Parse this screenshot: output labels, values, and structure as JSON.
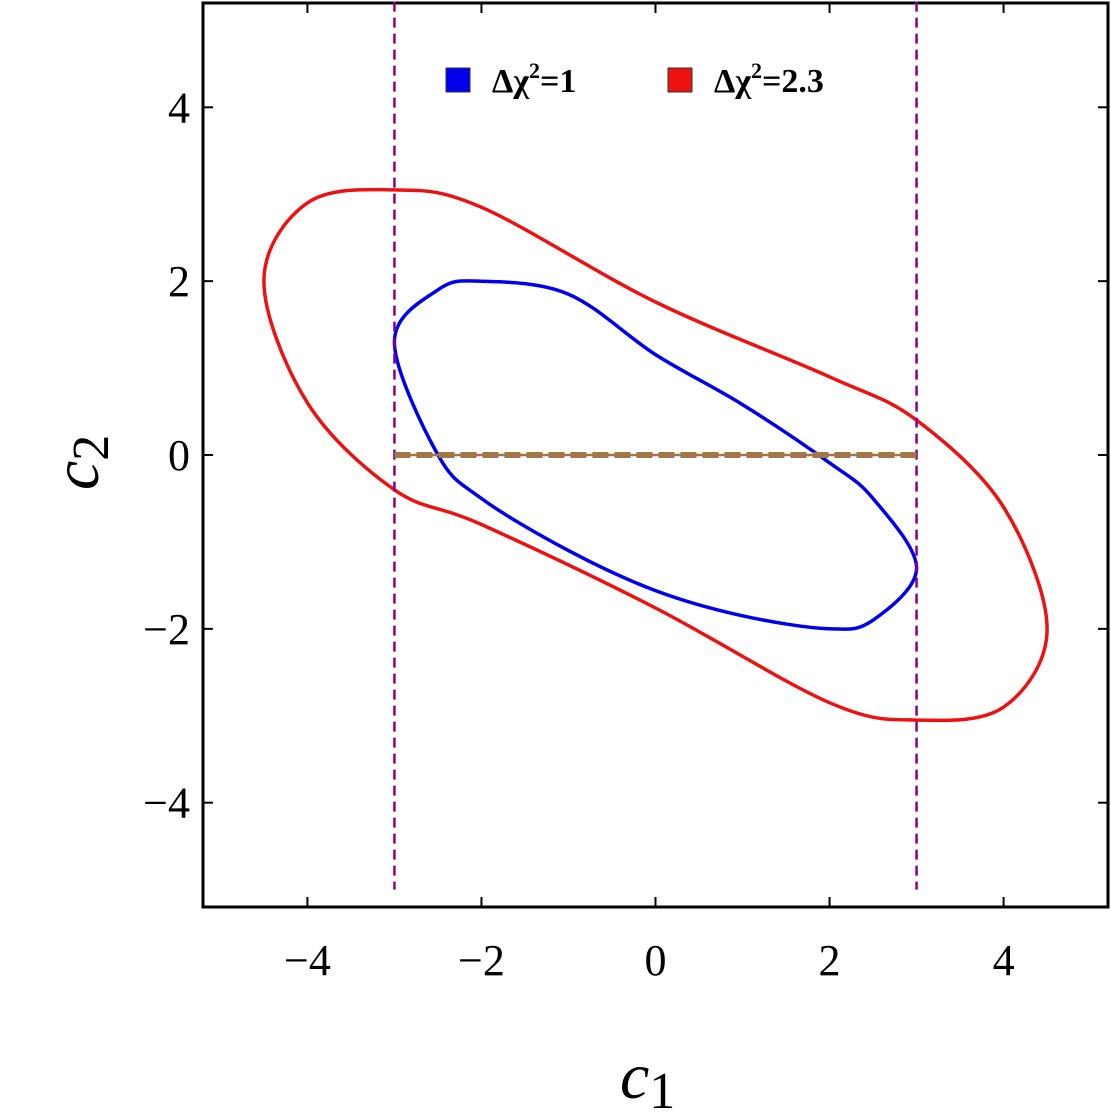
{
  "chart_data": {
    "type": "line",
    "xlabel": "c",
    "xlabel_sub": "1",
    "ylabel": "c",
    "ylabel_sub": "2",
    "xlim": [
      -5.2,
      5.2
    ],
    "ylim": [
      -5.2,
      5.2
    ],
    "xticks": [
      -4,
      -2,
      0,
      2,
      4
    ],
    "yticks": [
      -4,
      -2,
      0,
      2,
      4
    ],
    "xtick_labels": [
      "−4",
      "−2",
      "0",
      "2",
      "4"
    ],
    "ytick_labels": [
      "−4",
      "−2",
      "0",
      "2",
      "4"
    ],
    "grid": false,
    "legend_placement": "top-center",
    "series": [
      {
        "name": "Δχ²=1",
        "legend_prefix": "Δχ",
        "legend_sup": "2",
        "legend_suffix": "=1",
        "color": "#0000ee",
        "kind": "ellipse",
        "points": [
          [
            0,
            1.155
          ],
          [
            1,
            0.58
          ],
          [
            2,
            -0.09
          ],
          [
            2.5,
            -0.5
          ],
          [
            3,
            -1.3
          ],
          [
            2.5,
            -1.9
          ],
          [
            2,
            -2.0
          ],
          [
            1,
            -1.85
          ],
          [
            0,
            -1.56
          ],
          [
            -1,
            -1.1
          ],
          [
            -2,
            -0.5
          ],
          [
            -2.5,
            0
          ],
          [
            -3,
            1.3
          ],
          [
            -2.5,
            1.9
          ],
          [
            -2,
            2.0
          ],
          [
            -1,
            1.85
          ],
          [
            0,
            1.155
          ]
        ]
      },
      {
        "name": "Δχ²=2.3",
        "legend_prefix": "Δχ",
        "legend_sup": "2",
        "legend_suffix": "=2.3",
        "color": "#ee1111",
        "kind": "ellipse",
        "points": [
          [
            0,
            1.76
          ],
          [
            2,
            0.9
          ],
          [
            3,
            0.4
          ],
          [
            4,
            -0.6
          ],
          [
            4.5,
            -2.0
          ],
          [
            4,
            -2.9
          ],
          [
            3,
            -3.05
          ],
          [
            2,
            -2.85
          ],
          [
            0,
            -1.76
          ],
          [
            -2,
            -0.8
          ],
          [
            -3,
            -0.4
          ],
          [
            -4,
            0.6
          ],
          [
            -4.5,
            2.0
          ],
          [
            -4,
            2.9
          ],
          [
            -3,
            3.05
          ],
          [
            -2,
            2.85
          ],
          [
            0,
            1.76
          ]
        ]
      }
    ],
    "vertical_lines": [
      {
        "x": -3,
        "y_from": -5,
        "y_to": 5.4,
        "color": "#880088",
        "style": "dashed"
      },
      {
        "x": 3,
        "y_from": -5,
        "y_to": 5.4,
        "color": "#880088",
        "style": "dashed"
      }
    ],
    "horizontal_segments": [
      {
        "y": 0,
        "x_from": -3,
        "x_to": 3,
        "color": "#a07848",
        "style": "dashed"
      }
    ]
  }
}
